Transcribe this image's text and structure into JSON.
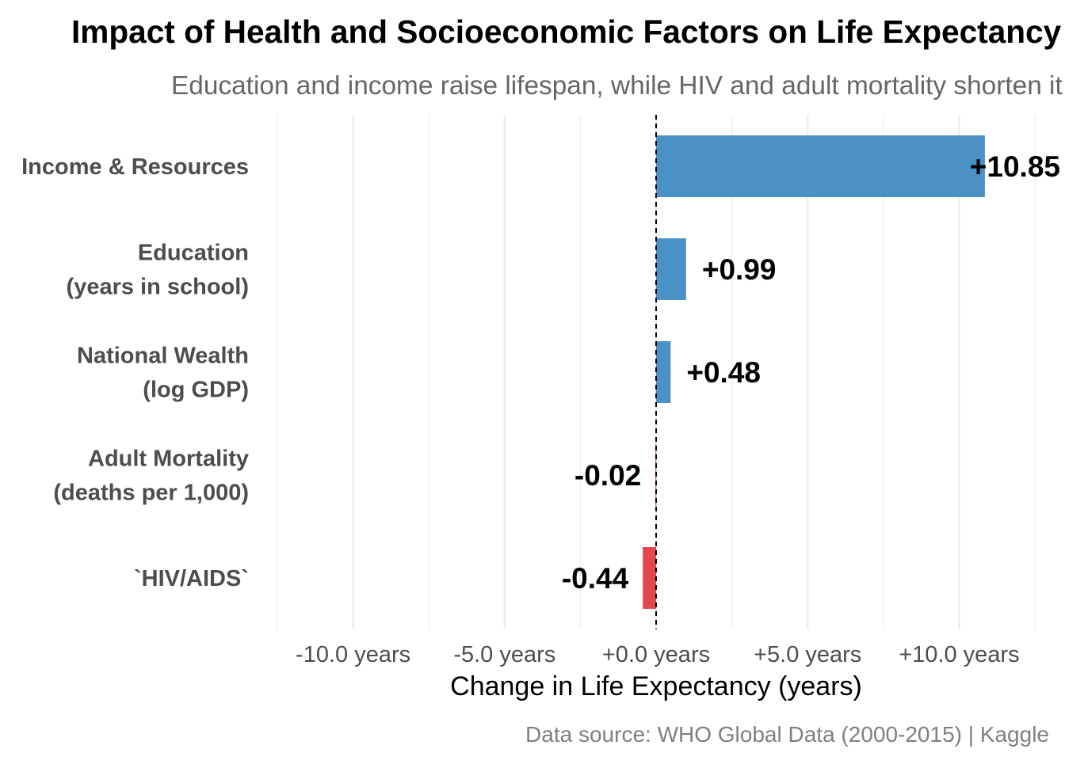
{
  "chart_data": {
    "type": "bar",
    "orientation": "horizontal",
    "title": "Impact of Health and Socioeconomic Factors on Life Expectancy",
    "subtitle": "Education and income raise lifespan, while HIV and adult mortality shorten it",
    "xlabel": "Change in Life Expectancy (years)",
    "ylabel": "",
    "caption": "Data source: WHO Global Data (2000-2015) | Kaggle",
    "xlim": [
      -12.5,
      12.5
    ],
    "xticks": [
      -10,
      -5,
      0,
      5,
      10
    ],
    "xtick_labels": [
      "-10.0 years",
      "-5.0 years",
      "+0.0 years",
      "+5.0 years",
      "+10.0 years"
    ],
    "grid": true,
    "reference_line": 0,
    "categories": [
      [
        "Income & Resources"
      ],
      [
        "Education",
        "(years in school)"
      ],
      [
        "National Wealth",
        "(log GDP)"
      ],
      [
        "Adult Mortality",
        "(deaths per 1,000)"
      ],
      [
        "`HIV/AIDS`"
      ]
    ],
    "values": [
      10.85,
      0.99,
      0.48,
      -0.02,
      -0.44
    ],
    "value_labels": [
      "+10.85",
      "+0.99",
      "+0.48",
      "-0.02",
      "-0.44"
    ],
    "colors": {
      "positive": "#3182bd",
      "negative": "#de2d36",
      "grid": "#ebebeb",
      "axis_text": "#4d4d4d",
      "subtitle": "#666666",
      "caption": "#7f7f7f"
    }
  }
}
